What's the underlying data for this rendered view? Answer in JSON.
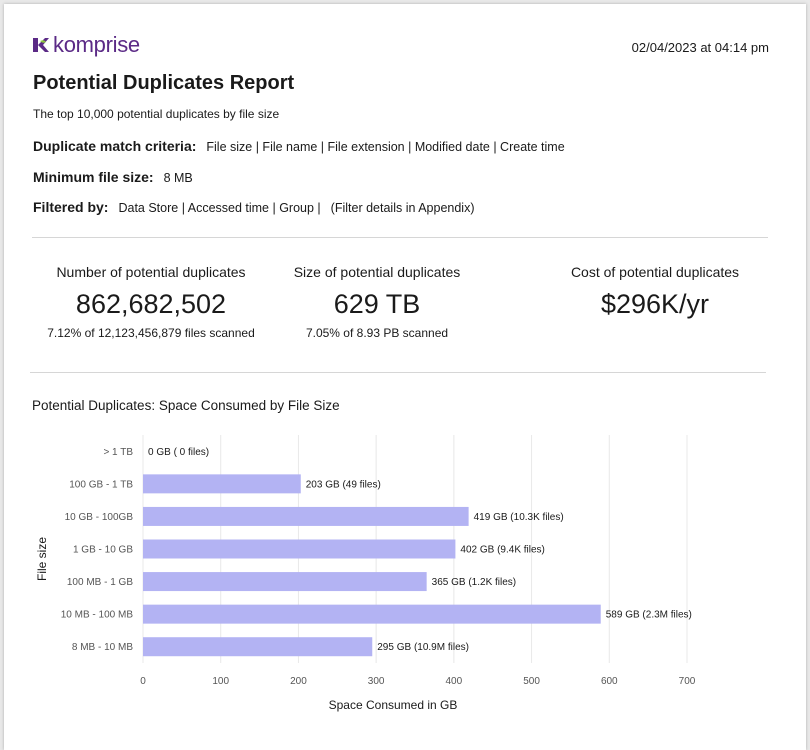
{
  "brand": {
    "name": "komprise",
    "accent": "#5b2a86",
    "leaf_color": "#8cc63f"
  },
  "timestamp": "02/04/2023 at 04:14 pm",
  "report": {
    "title": "Potential Duplicates Report",
    "subtitle": "The top 10,000 potential duplicates by file size",
    "criteria_label": "Duplicate match criteria:",
    "criteria_value": "File size | File name | File extension | Modified date | Create time",
    "min_size_label": "Minimum file size:",
    "min_size_value": "8 MB",
    "filtered_label": "Filtered by:",
    "filtered_value": "Data Store | Accessed time | Group |",
    "filtered_note": "(Filter details in Appendix)"
  },
  "kpis": [
    {
      "label": "Number of potential duplicates",
      "value": "862,682,502",
      "sub": "7.12% of 12,123,456,879 files scanned"
    },
    {
      "label": "Size of potential duplicates",
      "value": "629 TB",
      "sub": "7.05% of 8.93 PB scanned"
    },
    {
      "label": "Cost of potential duplicates",
      "value": "$296K/yr",
      "sub": ""
    }
  ],
  "chart_data": {
    "type": "bar",
    "orientation": "horizontal",
    "title": "Potential Duplicates: Space Consumed by File Size",
    "xlabel": "Space Consumed in GB",
    "ylabel": "File size",
    "xlim": [
      0,
      700
    ],
    "xticks": [
      0,
      100,
      200,
      300,
      400,
      500,
      600,
      700
    ],
    "grid": true,
    "bar_color": "#b3b3f3",
    "categories": [
      "> 1 TB",
      "100 GB - 1 TB",
      "10 GB - 100GB",
      "1 GB - 10 GB",
      "100 MB - 1 GB",
      "10 MB - 100 MB",
      "8 MB - 10 MB"
    ],
    "values": [
      0,
      203,
      419,
      402,
      365,
      589,
      295
    ],
    "data_labels": [
      "0 GB ( 0 files)",
      "203 GB (49 files)",
      "419 GB (10.3K files)",
      "402 GB (9.4K files)",
      "365 GB (1.2K files)",
      "589 GB (2.3M files)",
      "295 GB (10.9M files)"
    ]
  }
}
